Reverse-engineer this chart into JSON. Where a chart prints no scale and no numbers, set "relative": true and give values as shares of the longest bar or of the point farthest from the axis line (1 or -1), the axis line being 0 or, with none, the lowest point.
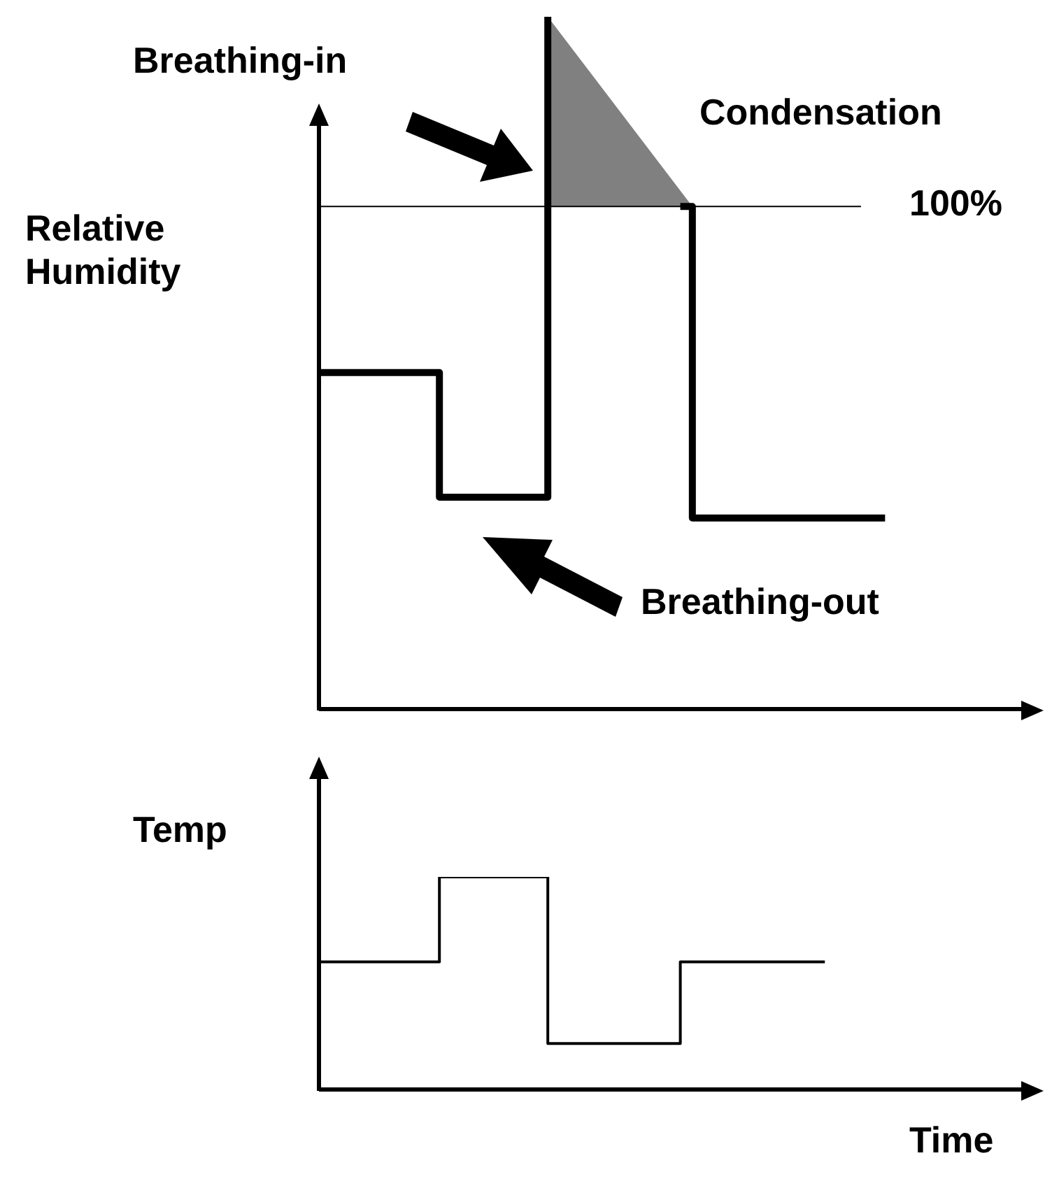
{
  "chart_data": [
    {
      "type": "step",
      "relative": true,
      "ylabel": "Relative Humidity",
      "annotations": [
        "Breathing-in",
        "Condensation",
        "Breathing-out",
        "100%"
      ],
      "categories": [
        null,
        null,
        null,
        null,
        null,
        null,
        null,
        null,
        null,
        null,
        null,
        null,
        null,
        null,
        null,
        null,
        null,
        null,
        null,
        null,
        null,
        null,
        null,
        null,
        null,
        null,
        null,
        null,
        null,
        null,
        null,
        null,
        null,
        null,
        null,
        null,
        null,
        null,
        null,
        null,
        null,
        null,
        null,
        null,
        null,
        null,
        null,
        null,
        null,
        null,
        null,
        null,
        null,
        null,
        null,
        null,
        null,
        null,
        null,
        null
      ],
      "ref_lines": [
        {
          "axis": "y",
          "value": 0.726,
          "color": "#000000"
        }
      ],
      "series": [
        {
          "color": "#000000",
          "values": [
            0.486,
            0.486,
            0.486,
            0.486,
            0.486,
            0.486,
            0.486,
            0.486,
            0.486,
            0.486,
            0.306,
            0.306,
            0.306,
            0.306,
            0.306,
            0.306,
            0.306,
            0.306,
            0.306,
            1.0,
            null,
            null,
            null,
            null,
            null,
            null,
            null,
            null,
            null,
            null,
            0.726,
            0.276,
            0.276,
            0.276,
            0.276,
            0.276,
            0.276,
            0.276,
            0.276,
            0.276,
            0.276,
            0.276,
            0.276,
            0.276,
            0.276,
            0.276,
            0.276,
            0.276,
            null,
            null,
            null,
            null,
            null,
            null,
            null,
            null,
            null,
            null,
            null,
            null
          ]
        },
        {
          "type": "area",
          "color": "#808080",
          "values": [
            null,
            null,
            null,
            null,
            null,
            null,
            null,
            null,
            null,
            null,
            null,
            null,
            null,
            null,
            null,
            null,
            null,
            null,
            null,
            1.0,
            null,
            null,
            null,
            null,
            null,
            null,
            null,
            null,
            null,
            null,
            null,
            0.726,
            null,
            null,
            null,
            null,
            null,
            null,
            null,
            null,
            null,
            null,
            null,
            null,
            null,
            null,
            null,
            null,
            null,
            null,
            null,
            null,
            null,
            null,
            null,
            null,
            null,
            null,
            null,
            null
          ]
        }
      ]
    },
    {
      "type": "step",
      "relative": true,
      "ylabel": "Temp",
      "xlabel": "Time",
      "categories": [
        null,
        null,
        null,
        null,
        null,
        null,
        null,
        null,
        null,
        null,
        null,
        null,
        null,
        null,
        null,
        null,
        null,
        null,
        null,
        null,
        null,
        null,
        null,
        null,
        null,
        null,
        null,
        null,
        null,
        null,
        null,
        null,
        null,
        null,
        null,
        null,
        null,
        null,
        null,
        null,
        null,
        null,
        null,
        null,
        null,
        null,
        null,
        null,
        null,
        null,
        null,
        null,
        null,
        null,
        null,
        null,
        null,
        null,
        null,
        null
      ],
      "series": [
        {
          "color": "#000000",
          "values": [
            0.6,
            0.6,
            0.6,
            0.6,
            0.6,
            0.6,
            0.6,
            0.6,
            0.6,
            0.6,
            1.0,
            1.0,
            1.0,
            1.0,
            1.0,
            1.0,
            1.0,
            1.0,
            1.0,
            0.216,
            0.216,
            0.216,
            0.216,
            0.216,
            0.216,
            0.216,
            0.216,
            0.216,
            0.216,
            0.216,
            0.6,
            0.6,
            0.6,
            0.6,
            0.6,
            0.6,
            0.6,
            0.6,
            0.6,
            0.6,
            0.6,
            0.6,
            0.6,
            null,
            null,
            null,
            null,
            null,
            null,
            null,
            null,
            null,
            null,
            null,
            null,
            null,
            null,
            null,
            null,
            null
          ]
        }
      ]
    }
  ]
}
